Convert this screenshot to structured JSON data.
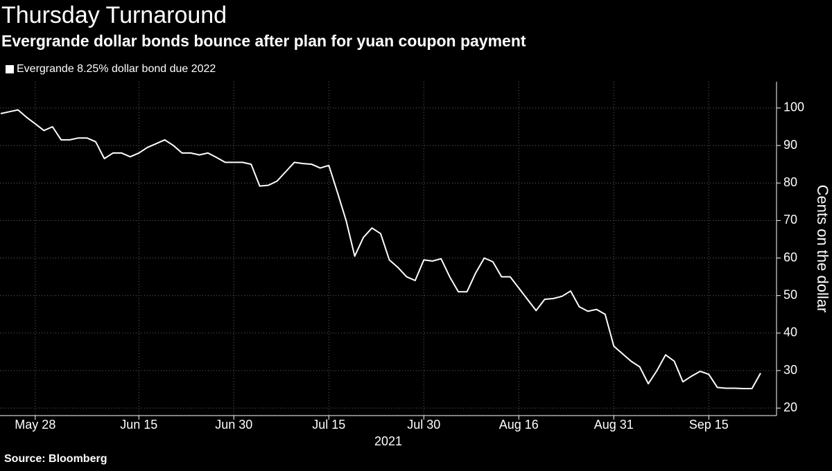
{
  "chart_data": {
    "type": "line",
    "title": "Thursday Turnaround",
    "subtitle": "Evergrande dollar bonds bounce after plan for yuan coupon payment",
    "source": "Source: Bloomberg",
    "y_label": "Cents on the dollar",
    "x_group_label": "2021",
    "categories": [
      null,
      null,
      null,
      null,
      "May 28",
      null,
      null,
      null,
      null,
      null,
      null,
      null,
      null,
      null,
      null,
      null,
      "Jun 15",
      null,
      null,
      null,
      null,
      null,
      null,
      null,
      null,
      null,
      null,
      "Jun 30",
      null,
      null,
      null,
      null,
      null,
      null,
      null,
      null,
      null,
      null,
      "Jul 15",
      null,
      null,
      null,
      null,
      null,
      null,
      null,
      null,
      null,
      null,
      "Jul 30",
      null,
      null,
      null,
      null,
      null,
      null,
      null,
      null,
      null,
      null,
      "Aug 16",
      null,
      null,
      null,
      null,
      null,
      null,
      null,
      null,
      null,
      null,
      "Aug 31",
      null,
      null,
      null,
      null,
      null,
      null,
      null,
      null,
      null,
      null,
      "Sep 15",
      null,
      null,
      null,
      null,
      null,
      null
    ],
    "series": [
      {
        "name": "Evergrande 8.25% dollar bond due 2022",
        "color": "#ffffff",
        "values": [
          98.5,
          99,
          99.5,
          97.5,
          95.8,
          94,
          95,
          91.5,
          91.5,
          92,
          92,
          91,
          86.5,
          88,
          88,
          87,
          88,
          89.5,
          90.5,
          91.5,
          90,
          88,
          88,
          87.5,
          88,
          86.8,
          85.5,
          85.5,
          85.5,
          85,
          79.2,
          79.4,
          80.5,
          83,
          85.5,
          85.2,
          85,
          84,
          84.7,
          77.5,
          70,
          60.5,
          65.5,
          68,
          66.5,
          59.5,
          57.5,
          55,
          54,
          59.5,
          59.2,
          59.8,
          55,
          51,
          51,
          56,
          60,
          59,
          55,
          55,
          52,
          49,
          46,
          49,
          49.2,
          49.8,
          51.2,
          47,
          45.8,
          46.3,
          45,
          36.5,
          34.5,
          32.5,
          31,
          26.5,
          30,
          34.2,
          32.5,
          27,
          28.5,
          29.8,
          29,
          25.5,
          25.3,
          25.3,
          25.2,
          25.2,
          29.3
        ]
      }
    ],
    "ylim": [
      18,
      107
    ],
    "yticks": [
      20,
      30,
      40,
      50,
      60,
      70,
      80,
      90,
      100
    ],
    "y_axis_side": "right",
    "grid": true,
    "background": "#000000"
  }
}
